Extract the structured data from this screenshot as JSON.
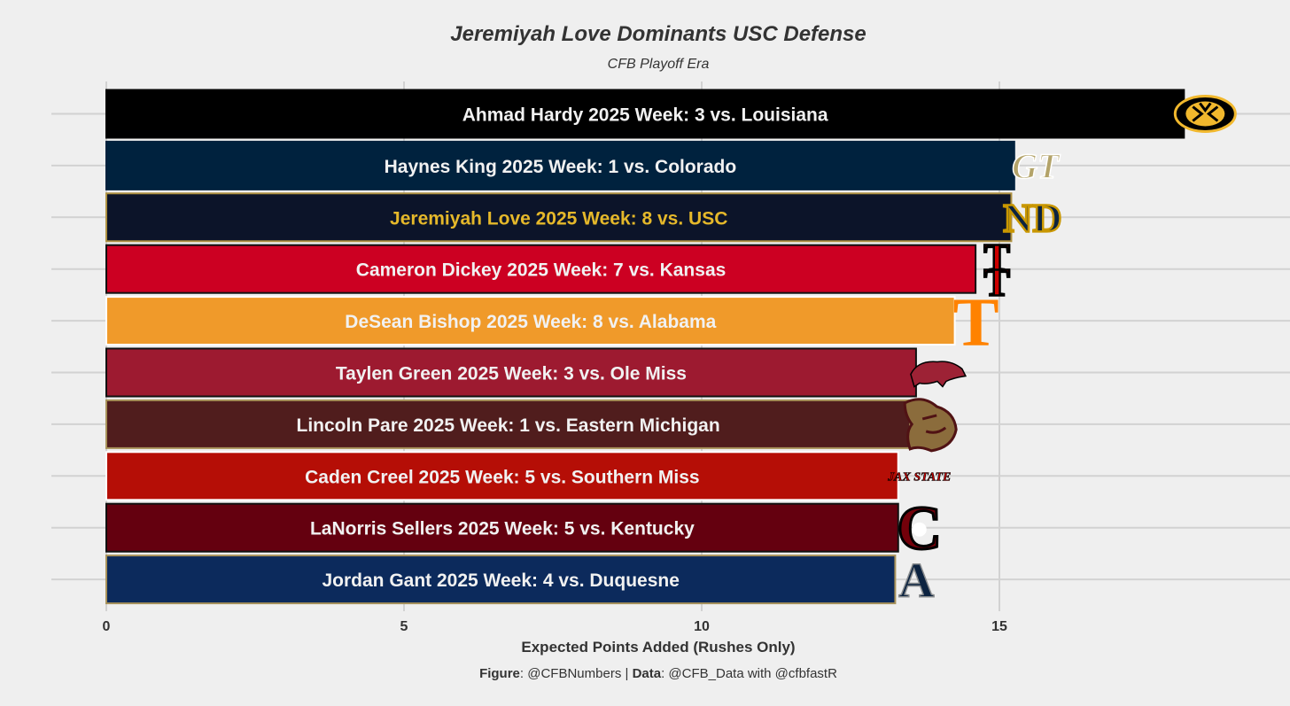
{
  "chart_data": {
    "type": "bar",
    "orientation": "horizontal",
    "title": "Jeremiyah Love Dominants USC Defense",
    "subtitle": "CFB Playoff Era",
    "xlabel": "Expected Points Added (Rushes Only)",
    "ylabel": "",
    "xlim": [
      0,
      19.6
    ],
    "xticks": [
      0,
      5,
      10,
      15
    ],
    "grid": true,
    "caption": {
      "figure_label": "Figure",
      "figure_value": ": @CFBNumbers | ",
      "data_label": "Data",
      "data_value": ": @CFB_Data with @cfbfastR"
    },
    "bars": [
      {
        "label": "Ahmad Hardy 2025 Week: 3 vs. Louisiana",
        "value": 18.1,
        "fill": "#000000",
        "outline": "#000000",
        "text_color": "#f1f1f1",
        "team": "Missouri",
        "logo_icon": "missouri-tiger-icon",
        "logo_text": ""
      },
      {
        "label": "Haynes King 2025 Week: 1 vs. Colorado",
        "value": 15.25,
        "fill": "#00223e",
        "outline": "#00223e",
        "text_color": "#f1f1f1",
        "team": "Georgia Tech",
        "logo_icon": "georgia-tech-icon",
        "logo_text": "GT"
      },
      {
        "label": "Jeremiyah Love 2025 Week: 8 vs. USC",
        "value": 15.2,
        "fill": "#0c1429",
        "outline": "#ae9142",
        "text_color": "#e5b82a",
        "team": "Notre Dame",
        "logo_icon": "notre-dame-icon",
        "logo_text": "ND"
      },
      {
        "label": "Cameron Dickey 2025 Week: 7 vs. Kansas",
        "value": 14.6,
        "fill": "#cc0022",
        "outline": "#111111",
        "text_color": "#f1f1f1",
        "team": "Texas Tech",
        "logo_icon": "texas-tech-icon",
        "logo_text": "TT"
      },
      {
        "label": "DeSean Bishop 2025 Week: 8 vs. Alabama",
        "value": 14.25,
        "fill": "#f09a2a",
        "outline": "#ffffff",
        "text_color": "#f1f1f1",
        "team": "Tennessee",
        "logo_icon": "tennessee-icon",
        "logo_text": "T"
      },
      {
        "label": "Taylen Green 2025 Week: 3 vs. Ole Miss",
        "value": 13.6,
        "fill": "#9d1a30",
        "outline": "#111111",
        "text_color": "#f1f1f1",
        "team": "Arkansas",
        "logo_icon": "arkansas-razorback-icon",
        "logo_text": ""
      },
      {
        "label": "Lincoln Pare 2025 Week: 1 vs. Eastern Michigan",
        "value": 13.5,
        "fill": "#501d1d",
        "outline": "#a8925a",
        "text_color": "#f1f1f1",
        "team": "Texas State",
        "logo_icon": "texas-state-bobcat-icon",
        "logo_text": ""
      },
      {
        "label": "Caden Creel 2025 Week: 5 vs. Southern Miss",
        "value": 13.3,
        "fill": "#b50e06",
        "outline": "#ffffff",
        "text_color": "#f1f1f1",
        "team": "Jacksonville State",
        "logo_icon": "jax-state-icon",
        "logo_text": "JAX STATE"
      },
      {
        "label": "LaNorris Sellers 2025 Week: 5 vs. Kentucky",
        "value": 13.3,
        "fill": "#64000f",
        "outline": "#111111",
        "text_color": "#f1f1f1",
        "team": "South Carolina",
        "logo_icon": "south-carolina-icon",
        "logo_text": "C"
      },
      {
        "label": "Jordan Gant 2025 Week: 4 vs. Duquesne",
        "value": 13.25,
        "fill": "#0c2a5c",
        "outline": "#a8925a",
        "text_color": "#f1f1f1",
        "team": "Air Force",
        "logo_icon": "air-force-icon",
        "logo_text": "A"
      }
    ]
  }
}
